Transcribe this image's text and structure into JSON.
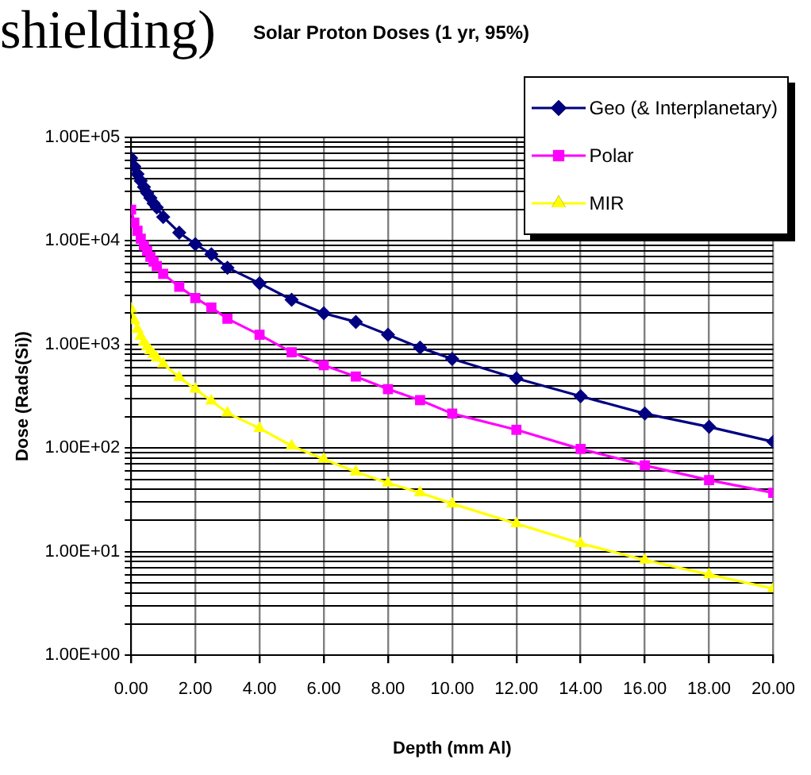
{
  "chart_data": {
    "type": "line",
    "title": "Solar Proton Doses (1 yr, 95%)",
    "xlabel": "Depth (mm Al)",
    "ylabel": "Dose (Rads(Si))",
    "annotations": [
      "shielding)"
    ],
    "x": [
      0,
      0.1,
      0.2,
      0.3,
      0.4,
      0.5,
      0.6,
      0.7,
      0.8,
      1,
      1.5,
      2,
      2.5,
      3,
      4,
      5,
      6,
      7,
      8,
      9,
      10,
      12,
      14,
      16,
      18,
      20
    ],
    "series": [
      {
        "name": "Geo (& Interplanetary)",
        "color": "#000080",
        "marker": "diamond",
        "values": [
          63000,
          52000,
          44000,
          38000,
          33000,
          29000,
          26000,
          23000,
          21000,
          17000,
          12000,
          9300,
          7400,
          5500,
          3900,
          2700,
          2000,
          1650,
          1240,
          930,
          725,
          470,
          316,
          215,
          160,
          115
        ]
      },
      {
        "name": "Polar",
        "color": "#ff00ff",
        "marker": "square",
        "values": [
          20000,
          15000,
          12500,
          10500,
          9000,
          8000,
          7000,
          6300,
          5700,
          4800,
          3600,
          2800,
          2270,
          1770,
          1240,
          840,
          630,
          490,
          370,
          290,
          215,
          150,
          98,
          68,
          49,
          37
        ]
      },
      {
        "name": "MIR",
        "color": "#ffff00",
        "marker": "triangle",
        "values": [
          2200,
          1700,
          1400,
          1200,
          1050,
          950,
          870,
          800,
          740,
          650,
          480,
          370,
          285,
          218,
          155,
          105,
          78,
          59,
          46,
          37,
          29,
          18.6,
          12,
          8.3,
          6,
          4.4
        ]
      }
    ],
    "log": "y",
    "xlim": [
      0,
      20
    ],
    "ylim": [
      1,
      100000
    ],
    "xticks": [
      {
        "value": 0,
        "label": "0.00"
      },
      {
        "value": 2,
        "label": "2.00"
      },
      {
        "value": 4,
        "label": "4.00"
      },
      {
        "value": 6,
        "label": "6.00"
      },
      {
        "value": 8,
        "label": "8.00"
      },
      {
        "value": 10,
        "label": "10.00"
      },
      {
        "value": 12,
        "label": "12.00"
      },
      {
        "value": 14,
        "label": "14.00"
      },
      {
        "value": 16,
        "label": "16.00"
      },
      {
        "value": 18,
        "label": "18.00"
      },
      {
        "value": 20,
        "label": "20.00"
      }
    ],
    "yticks": [
      {
        "value": 1,
        "label": "1.00E+00"
      },
      {
        "value": 2,
        "label": null
      },
      {
        "value": 3,
        "label": null
      },
      {
        "value": 4,
        "label": null
      },
      {
        "value": 5,
        "label": null
      },
      {
        "value": 6,
        "label": null
      },
      {
        "value": 7,
        "label": null
      },
      {
        "value": 8,
        "label": null
      },
      {
        "value": 9,
        "label": null
      },
      {
        "value": 10,
        "label": "1.00E+01"
      },
      {
        "value": 20,
        "label": null
      },
      {
        "value": 30,
        "label": null
      },
      {
        "value": 40,
        "label": null
      },
      {
        "value": 50,
        "label": null
      },
      {
        "value": 60,
        "label": null
      },
      {
        "value": 70,
        "label": null
      },
      {
        "value": 80,
        "label": null
      },
      {
        "value": 90,
        "label": null
      },
      {
        "value": 100,
        "label": "1.00E+02"
      },
      {
        "value": 200,
        "label": null
      },
      {
        "value": 300,
        "label": null
      },
      {
        "value": 400,
        "label": null
      },
      {
        "value": 500,
        "label": null
      },
      {
        "value": 600,
        "label": null
      },
      {
        "value": 700,
        "label": null
      },
      {
        "value": 800,
        "label": null
      },
      {
        "value": 900,
        "label": null
      },
      {
        "value": 1000,
        "label": "1.00E+03"
      },
      {
        "value": 2000,
        "label": null
      },
      {
        "value": 3000,
        "label": null
      },
      {
        "value": 4000,
        "label": null
      },
      {
        "value": 5000,
        "label": null
      },
      {
        "value": 6000,
        "label": null
      },
      {
        "value": 7000,
        "label": null
      },
      {
        "value": 8000,
        "label": null
      },
      {
        "value": 9000,
        "label": null
      },
      {
        "value": 10000,
        "label": "1.00E+04"
      },
      {
        "value": 20000,
        "label": null
      },
      {
        "value": 30000,
        "label": null
      },
      {
        "value": 40000,
        "label": null
      },
      {
        "value": 50000,
        "label": null
      },
      {
        "value": 60000,
        "label": null
      },
      {
        "value": 70000,
        "label": null
      },
      {
        "value": 80000,
        "label": null
      },
      {
        "value": 90000,
        "label": null
      },
      {
        "value": 100000,
        "label": "1.00E+05"
      }
    ],
    "grid": true,
    "legend": "top right"
  }
}
